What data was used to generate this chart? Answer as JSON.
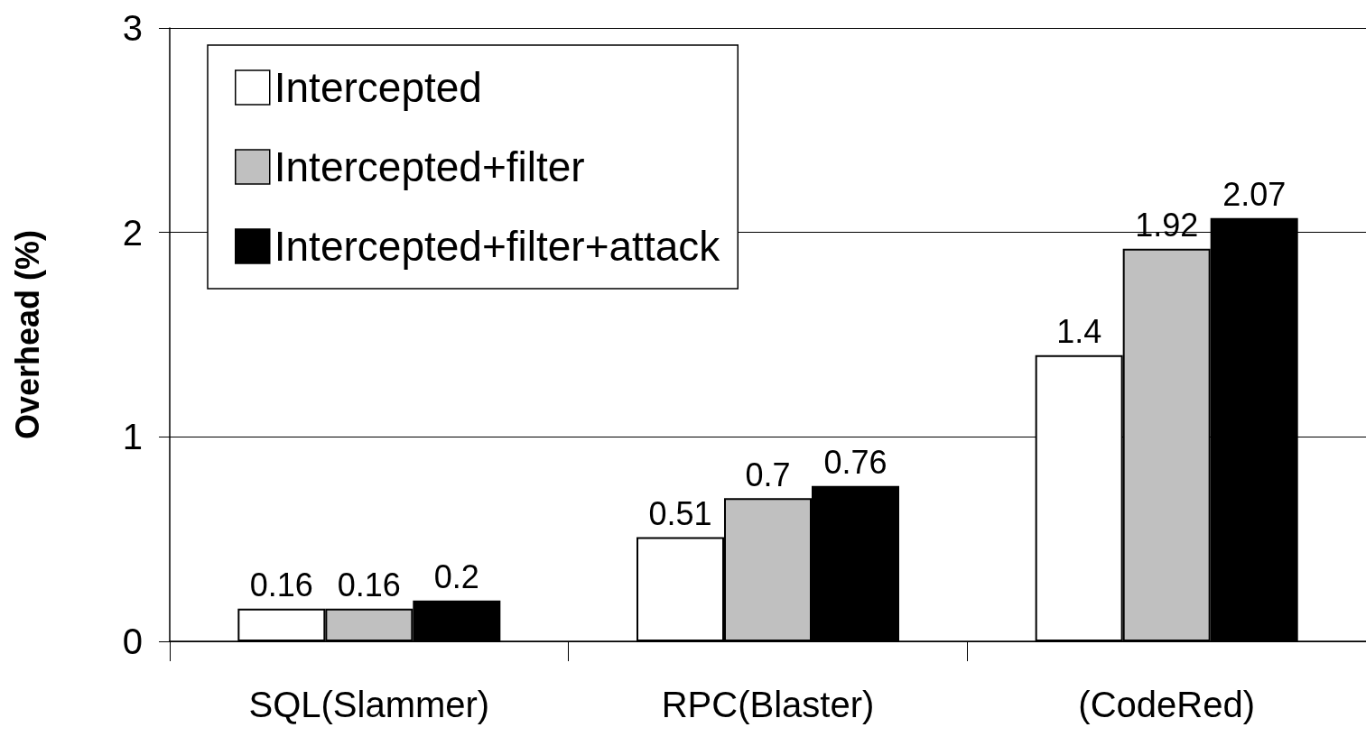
{
  "chart_data": {
    "type": "bar",
    "ylabel": "Overhead (%)",
    "categories": [
      "SQL(Slammer)",
      "RPC(Blaster)",
      "(CodeRed)"
    ],
    "series": [
      {
        "name": "Intercepted",
        "color": "#ffffff",
        "values": [
          0.16,
          0.51,
          1.4
        ]
      },
      {
        "name": "Intercepted+filter",
        "color": "#c0c0c0",
        "values": [
          0.16,
          0.7,
          1.92
        ]
      },
      {
        "name": "Intercepted+filter+attack",
        "color": "#000000",
        "values": [
          0.2,
          0.76,
          2.07
        ]
      }
    ],
    "ylim": [
      0,
      3
    ],
    "yticks": [
      0,
      1,
      2,
      3
    ],
    "grid": "y",
    "legend": "top left",
    "data_labels": true
  }
}
